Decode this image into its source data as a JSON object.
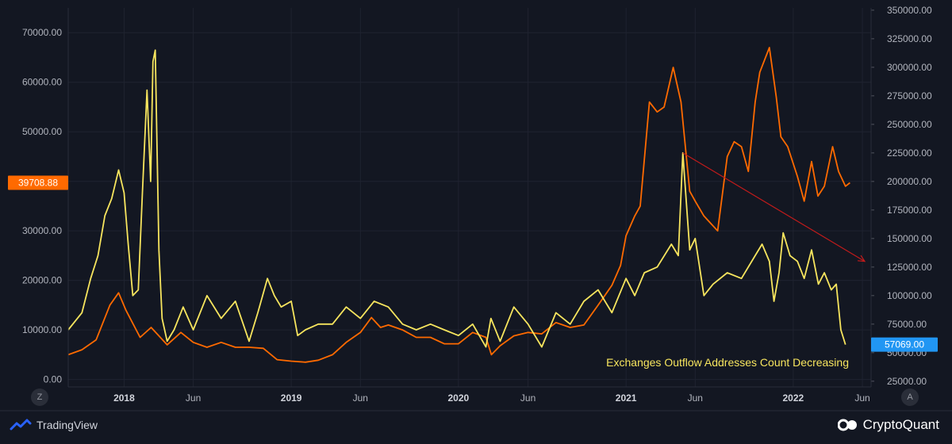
{
  "chart_data": {
    "type": "line",
    "annotation": "Exchanges Outflow Addresses Count Decreasing",
    "left_axis": {
      "ticks": [
        "0.00",
        "10000.00",
        "20000.00",
        "30000.00",
        "40000.00",
        "50000.00",
        "60000.00",
        "70000.00"
      ],
      "tick_values": [
        0,
        10000,
        20000,
        30000,
        40000,
        50000,
        60000,
        70000
      ],
      "range": [
        -1500,
        75000
      ]
    },
    "right_axis": {
      "ticks": [
        "25000.00",
        "50000.00",
        "75000.00",
        "100000.00",
        "125000.00",
        "150000.00",
        "175000.00",
        "200000.00",
        "225000.00",
        "250000.00",
        "275000.00",
        "300000.00",
        "325000.00",
        "350000.00"
      ],
      "tick_values": [
        25000,
        50000,
        75000,
        100000,
        125000,
        150000,
        175000,
        200000,
        225000,
        250000,
        275000,
        300000,
        325000,
        350000
      ],
      "range": [
        20000,
        352000
      ]
    },
    "x_axis": {
      "ticks": [
        "2018",
        "Jun",
        "2019",
        "Jun",
        "2020",
        "Jun",
        "2021",
        "Jun",
        "2022",
        "Jun"
      ],
      "tick_values": [
        "2018-01-01",
        "2018-06-01",
        "2019-01-01",
        "2019-06-01",
        "2020-01-01",
        "2020-06-01",
        "2021-01-01",
        "2021-06-01",
        "2022-01-01",
        "2022-06-01"
      ],
      "range": [
        "2017-09-01",
        "2022-06-20"
      ]
    },
    "badges": {
      "price_label": "39708.88",
      "outflow_label": "57069.00"
    },
    "series": [
      {
        "axis": "left",
        "color": "#ff6a00",
        "points": [
          [
            "2017-09-01",
            5000
          ],
          [
            "2017-10-01",
            6000
          ],
          [
            "2017-11-01",
            8000
          ],
          [
            "2017-12-01",
            15000
          ],
          [
            "2017-12-20",
            17500
          ],
          [
            "2018-01-05",
            14000
          ],
          [
            "2018-02-05",
            8500
          ],
          [
            "2018-03-01",
            10500
          ],
          [
            "2018-04-05",
            7000
          ],
          [
            "2018-05-05",
            9500
          ],
          [
            "2018-06-01",
            7500
          ],
          [
            "2018-07-01",
            6500
          ],
          [
            "2018-08-01",
            7500
          ],
          [
            "2018-09-01",
            6500
          ],
          [
            "2018-10-01",
            6500
          ],
          [
            "2018-11-01",
            6300
          ],
          [
            "2018-12-01",
            4000
          ],
          [
            "2019-01-01",
            3700
          ],
          [
            "2019-02-01",
            3500
          ],
          [
            "2019-03-01",
            3900
          ],
          [
            "2019-04-01",
            5000
          ],
          [
            "2019-05-01",
            7500
          ],
          [
            "2019-06-01",
            9500
          ],
          [
            "2019-06-25",
            12500
          ],
          [
            "2019-07-15",
            10500
          ],
          [
            "2019-08-01",
            11000
          ],
          [
            "2019-09-01",
            10000
          ],
          [
            "2019-10-01",
            8500
          ],
          [
            "2019-11-01",
            8500
          ],
          [
            "2019-12-01",
            7200
          ],
          [
            "2020-01-01",
            7200
          ],
          [
            "2020-02-01",
            9500
          ],
          [
            "2020-03-01",
            8500
          ],
          [
            "2020-03-13",
            5000
          ],
          [
            "2020-04-01",
            6800
          ],
          [
            "2020-05-01",
            8800
          ],
          [
            "2020-06-01",
            9500
          ],
          [
            "2020-07-01",
            9200
          ],
          [
            "2020-08-01",
            11500
          ],
          [
            "2020-09-01",
            10500
          ],
          [
            "2020-10-01",
            11000
          ],
          [
            "2020-11-01",
            15000
          ],
          [
            "2020-12-01",
            19000
          ],
          [
            "2020-12-20",
            23000
          ],
          [
            "2021-01-01",
            29000
          ],
          [
            "2021-01-20",
            33000
          ],
          [
            "2021-02-01",
            35000
          ],
          [
            "2021-02-21",
            56000
          ],
          [
            "2021-03-10",
            54000
          ],
          [
            "2021-03-25",
            55000
          ],
          [
            "2021-04-14",
            63000
          ],
          [
            "2021-05-01",
            56000
          ],
          [
            "2021-05-20",
            38000
          ],
          [
            "2021-06-01",
            36000
          ],
          [
            "2021-06-20",
            33000
          ],
          [
            "2021-07-20",
            30000
          ],
          [
            "2021-08-10",
            45000
          ],
          [
            "2021-08-25",
            48000
          ],
          [
            "2021-09-10",
            47000
          ],
          [
            "2021-09-25",
            42000
          ],
          [
            "2021-10-10",
            56000
          ],
          [
            "2021-10-20",
            62000
          ],
          [
            "2021-11-10",
            67000
          ],
          [
            "2021-11-25",
            57000
          ],
          [
            "2021-12-05",
            49000
          ],
          [
            "2021-12-20",
            47000
          ],
          [
            "2022-01-10",
            41000
          ],
          [
            "2022-01-25",
            36000
          ],
          [
            "2022-02-10",
            44000
          ],
          [
            "2022-02-24",
            37000
          ],
          [
            "2022-03-10",
            39000
          ],
          [
            "2022-03-28",
            47000
          ],
          [
            "2022-04-10",
            42000
          ],
          [
            "2022-04-25",
            39000
          ],
          [
            "2022-05-05",
            39708
          ]
        ]
      },
      {
        "axis": "right",
        "color": "#f7e55e",
        "points": [
          [
            "2017-09-01",
            70000
          ],
          [
            "2017-10-01",
            85000
          ],
          [
            "2017-10-20",
            115000
          ],
          [
            "2017-11-05",
            135000
          ],
          [
            "2017-11-20",
            170000
          ],
          [
            "2017-12-05",
            185000
          ],
          [
            "2017-12-20",
            210000
          ],
          [
            "2018-01-01",
            190000
          ],
          [
            "2018-01-10",
            145000
          ],
          [
            "2018-01-20",
            100000
          ],
          [
            "2018-02-01",
            105000
          ],
          [
            "2018-02-10",
            190000
          ],
          [
            "2018-02-20",
            280000
          ],
          [
            "2018-02-28",
            200000
          ],
          [
            "2018-03-05",
            305000
          ],
          [
            "2018-03-10",
            315000
          ],
          [
            "2018-03-18",
            140000
          ],
          [
            "2018-03-25",
            80000
          ],
          [
            "2018-04-05",
            60000
          ],
          [
            "2018-04-20",
            70000
          ],
          [
            "2018-05-10",
            90000
          ],
          [
            "2018-06-01",
            70000
          ],
          [
            "2018-07-01",
            100000
          ],
          [
            "2018-08-01",
            80000
          ],
          [
            "2018-09-01",
            95000
          ],
          [
            "2018-10-01",
            60000
          ],
          [
            "2018-10-20",
            85000
          ],
          [
            "2018-11-10",
            115000
          ],
          [
            "2018-11-25",
            100000
          ],
          [
            "2018-12-10",
            90000
          ],
          [
            "2019-01-01",
            95000
          ],
          [
            "2019-01-15",
            65000
          ],
          [
            "2019-02-01",
            70000
          ],
          [
            "2019-03-01",
            75000
          ],
          [
            "2019-04-01",
            75000
          ],
          [
            "2019-05-01",
            90000
          ],
          [
            "2019-06-01",
            80000
          ],
          [
            "2019-07-01",
            95000
          ],
          [
            "2019-08-01",
            90000
          ],
          [
            "2019-09-01",
            75000
          ],
          [
            "2019-10-01",
            70000
          ],
          [
            "2019-11-01",
            75000
          ],
          [
            "2019-12-01",
            70000
          ],
          [
            "2020-01-01",
            65000
          ],
          [
            "2020-02-01",
            75000
          ],
          [
            "2020-03-01",
            55000
          ],
          [
            "2020-03-12",
            80000
          ],
          [
            "2020-04-01",
            60000
          ],
          [
            "2020-05-01",
            90000
          ],
          [
            "2020-06-01",
            75000
          ],
          [
            "2020-07-01",
            55000
          ],
          [
            "2020-08-01",
            85000
          ],
          [
            "2020-09-01",
            75000
          ],
          [
            "2020-10-01",
            95000
          ],
          [
            "2020-11-01",
            105000
          ],
          [
            "2020-12-01",
            85000
          ],
          [
            "2021-01-01",
            115000
          ],
          [
            "2021-01-20",
            100000
          ],
          [
            "2021-02-10",
            120000
          ],
          [
            "2021-03-10",
            125000
          ],
          [
            "2021-04-10",
            145000
          ],
          [
            "2021-04-25",
            135000
          ],
          [
            "2021-05-05",
            225000
          ],
          [
            "2021-05-20",
            140000
          ],
          [
            "2021-06-01",
            150000
          ],
          [
            "2021-06-20",
            100000
          ],
          [
            "2021-07-10",
            110000
          ],
          [
            "2021-08-10",
            120000
          ],
          [
            "2021-09-10",
            115000
          ],
          [
            "2021-10-10",
            135000
          ],
          [
            "2021-10-25",
            145000
          ],
          [
            "2021-11-10",
            130000
          ],
          [
            "2021-11-20",
            95000
          ],
          [
            "2021-12-01",
            120000
          ],
          [
            "2021-12-10",
            155000
          ],
          [
            "2021-12-25",
            135000
          ],
          [
            "2022-01-10",
            130000
          ],
          [
            "2022-01-25",
            115000
          ],
          [
            "2022-02-10",
            140000
          ],
          [
            "2022-02-25",
            110000
          ],
          [
            "2022-03-10",
            120000
          ],
          [
            "2022-03-25",
            105000
          ],
          [
            "2022-04-05",
            110000
          ],
          [
            "2022-04-15",
            70000
          ],
          [
            "2022-04-25",
            57069
          ]
        ]
      }
    ]
  },
  "footer": {
    "tradingview_label": "TradingView",
    "cryptoquant_label": "CryptoQuant"
  },
  "controls": {
    "zoom_label": "Z",
    "auto_label": "A"
  }
}
